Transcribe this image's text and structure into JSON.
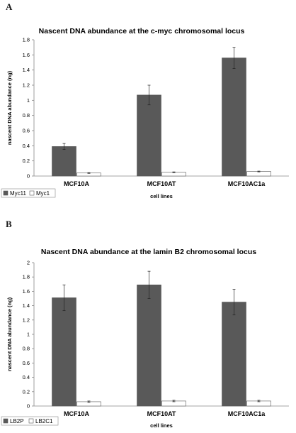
{
  "chart_data": [
    {
      "panel": "A",
      "type": "bar",
      "title": "Nascent DNA abundance at the c-myc chromosomal locus",
      "xlabel": "cell lines",
      "ylabel": "nascent DNA abundance (ng)",
      "categories": [
        "MCF10A",
        "MCF10AT",
        "MCF10AC1a"
      ],
      "ylim": [
        0,
        1.8
      ],
      "yticks": [
        "0",
        "0.2",
        "0.4",
        "0.6",
        "0.8",
        "1",
        "1.2",
        "1.4",
        "1.6",
        "1.8"
      ],
      "series": [
        {
          "name": "Myc11",
          "values": [
            0.39,
            1.07,
            1.56
          ],
          "errors": [
            0.04,
            0.13,
            0.14
          ],
          "color": "#595959"
        },
        {
          "name": "Myc1",
          "values": [
            0.04,
            0.05,
            0.06
          ],
          "errors": [
            0.005,
            0.005,
            0.005
          ],
          "color": "#ffffff"
        }
      ],
      "legend": "bottom-left",
      "grid": false
    },
    {
      "panel": "B",
      "type": "bar",
      "title": "Nascent DNA abundance at the lamin B2 chromosomal locus",
      "xlabel": "cell lines",
      "ylabel": "nascent DNA abundance (ng)",
      "categories": [
        "MCF10A",
        "MCF10AT",
        "MCF10AC1a"
      ],
      "ylim": [
        0,
        2
      ],
      "yticks": [
        "0",
        "0.2",
        "0.4",
        "0.6",
        "0.8",
        "1",
        "1.2",
        "1.4",
        "1.6",
        "1.8",
        "2"
      ],
      "series": [
        {
          "name": "LB2P",
          "values": [
            1.51,
            1.69,
            1.45
          ],
          "errors": [
            0.18,
            0.19,
            0.18
          ],
          "color": "#595959"
        },
        {
          "name": "LB2C1",
          "values": [
            0.06,
            0.07,
            0.07
          ],
          "errors": [
            0.01,
            0.01,
            0.01
          ],
          "color": "#ffffff"
        }
      ],
      "legend": "bottom-left",
      "grid": false
    }
  ]
}
